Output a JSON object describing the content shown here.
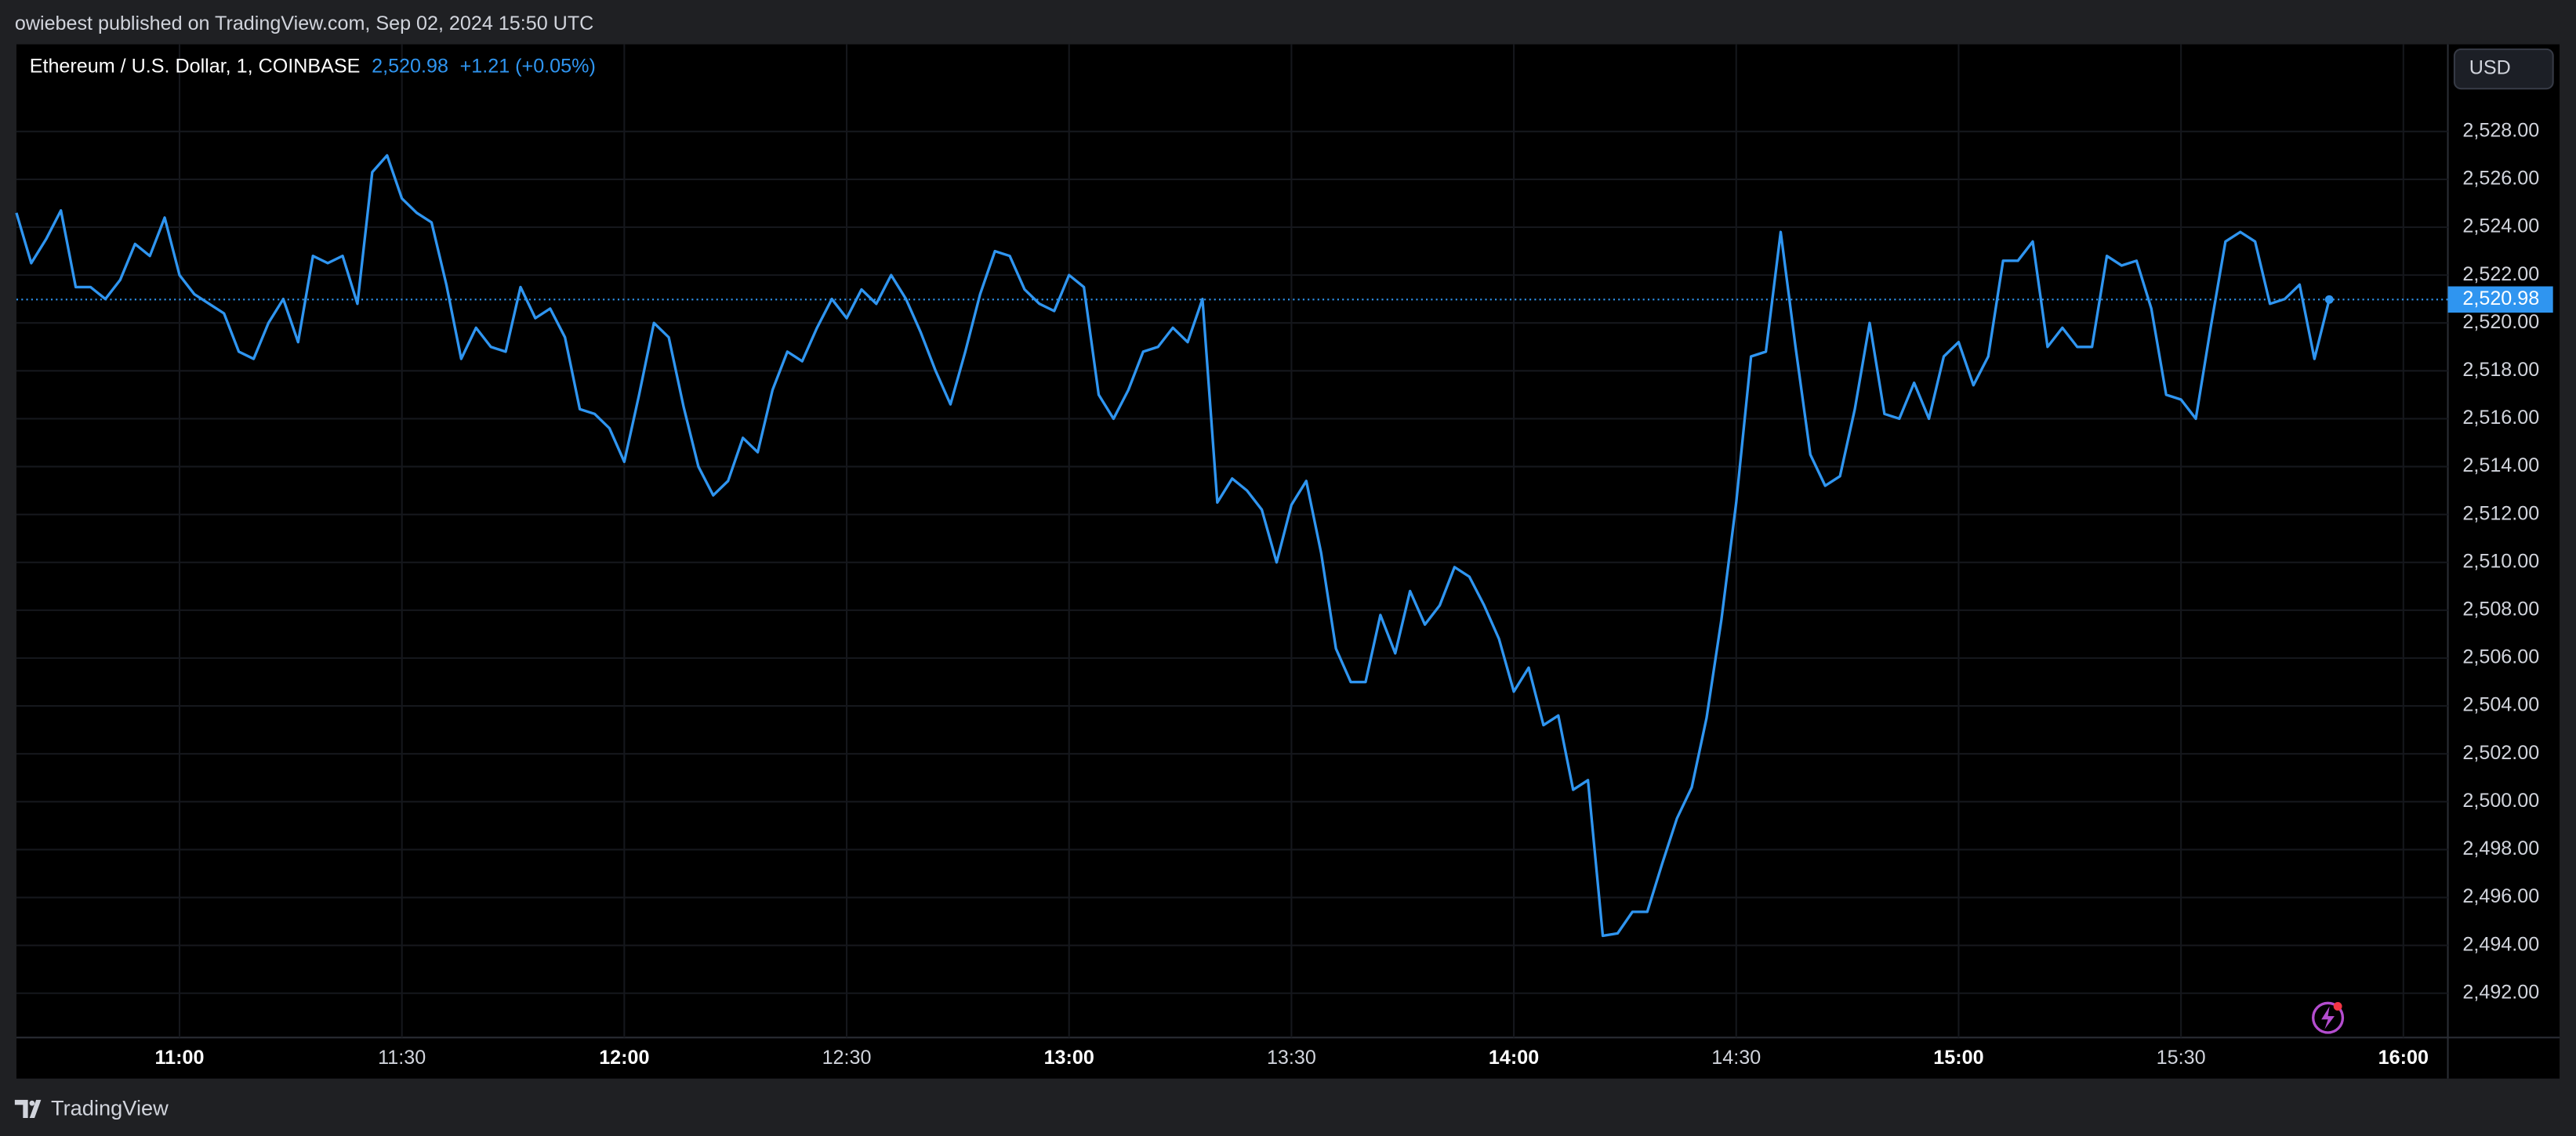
{
  "published": "owiebest published on TradingView.com, Sep 02, 2024 15:50 UTC",
  "brand": "TradingView",
  "currency": "USD",
  "chart_data": {
    "type": "line",
    "title": "Ethereum / U.S. Dollar, 1, COINBASE",
    "last_value": {
      "value": 2520.98,
      "label": "2,520.98"
    },
    "change_label": "+1.21 (+0.05%)",
    "x": [
      "10:38",
      "10:40",
      "10:42",
      "10:44",
      "10:46",
      "10:48",
      "10:50",
      "10:52",
      "10:54",
      "10:56",
      "10:58",
      "11:00",
      "11:02",
      "11:04",
      "11:06",
      "11:08",
      "11:10",
      "11:12",
      "11:14",
      "11:16",
      "11:18",
      "11:20",
      "11:22",
      "11:24",
      "11:26",
      "11:28",
      "11:30",
      "11:32",
      "11:34",
      "11:36",
      "11:38",
      "11:40",
      "11:42",
      "11:44",
      "11:46",
      "11:48",
      "11:50",
      "11:52",
      "11:54",
      "11:56",
      "11:58",
      "12:00",
      "12:02",
      "12:04",
      "12:06",
      "12:08",
      "12:10",
      "12:12",
      "12:14",
      "12:16",
      "12:18",
      "12:20",
      "12:22",
      "12:24",
      "12:26",
      "12:28",
      "12:30",
      "12:32",
      "12:34",
      "12:36",
      "12:38",
      "12:40",
      "12:42",
      "12:44",
      "12:46",
      "12:48",
      "12:50",
      "12:52",
      "12:54",
      "12:56",
      "12:58",
      "13:00",
      "13:02",
      "13:04",
      "13:06",
      "13:08",
      "13:10",
      "13:12",
      "13:14",
      "13:16",
      "13:18",
      "13:20",
      "13:22",
      "13:24",
      "13:26",
      "13:28",
      "13:30",
      "13:32",
      "13:34",
      "13:36",
      "13:38",
      "13:40",
      "13:42",
      "13:44",
      "13:46",
      "13:48",
      "13:50",
      "13:52",
      "13:54",
      "13:56",
      "13:58",
      "14:00",
      "14:02",
      "14:04",
      "14:06",
      "14:08",
      "14:10",
      "14:12",
      "14:14",
      "14:16",
      "14:18",
      "14:20",
      "14:22",
      "14:24",
      "14:26",
      "14:28",
      "14:30",
      "14:32",
      "14:34",
      "14:36",
      "14:38",
      "14:40",
      "14:42",
      "14:44",
      "14:46",
      "14:48",
      "14:50",
      "14:52",
      "14:54",
      "14:56",
      "14:58",
      "15:00",
      "15:02",
      "15:04",
      "15:06",
      "15:08",
      "15:10",
      "15:12",
      "15:14",
      "15:16",
      "15:18",
      "15:20",
      "15:22",
      "15:24",
      "15:26",
      "15:28",
      "15:30",
      "15:32",
      "15:34",
      "15:36",
      "15:38",
      "15:40",
      "15:42",
      "15:44",
      "15:46",
      "15:48",
      "15:50"
    ],
    "series": [
      {
        "name": "ETHUSD",
        "color": "#2f95f0",
        "values": [
          2524.6,
          2522.5,
          2523.5,
          2524.7,
          2521.5,
          2521.5,
          2521,
          2521.8,
          2523.3,
          2522.8,
          2524.4,
          2522,
          2521.2,
          2520.8,
          2520.4,
          2518.8,
          2518.5,
          2520,
          2521,
          2519.2,
          2522.8,
          2522.5,
          2522.8,
          2520.8,
          2526.3,
          2527,
          2525.2,
          2524.6,
          2524.2,
          2521.6,
          2518.5,
          2519.8,
          2519,
          2518.8,
          2521.5,
          2520.2,
          2520.6,
          2519.4,
          2516.4,
          2516.2,
          2515.6,
          2514.2,
          2517,
          2520,
          2519.4,
          2516.5,
          2514,
          2512.8,
          2513.4,
          2515.2,
          2514.6,
          2517.2,
          2518.8,
          2518.4,
          2519.8,
          2521,
          2520.2,
          2521.4,
          2520.8,
          2522,
          2521,
          2519.6,
          2518,
          2516.6,
          2518.8,
          2521.2,
          2523,
          2522.8,
          2521.4,
          2520.8,
          2520.5,
          2522,
          2521.5,
          2517,
          2516,
          2517.2,
          2518.8,
          2519,
          2519.8,
          2519.2,
          2521,
          2512.5,
          2513.5,
          2513,
          2512.2,
          2510,
          2512.4,
          2513.4,
          2510.4,
          2506.4,
          2505,
          2505,
          2507.8,
          2506.2,
          2508.8,
          2507.4,
          2508.2,
          2509.8,
          2509.4,
          2508.2,
          2506.8,
          2504.6,
          2505.6,
          2503.2,
          2503.6,
          2500.5,
          2500.9,
          2494.4,
          2494.5,
          2495.4,
          2495.4,
          2497.4,
          2499.3,
          2500.6,
          2503.5,
          2507.6,
          2512.5,
          2518.6,
          2518.8,
          2523.8,
          2519,
          2514.5,
          2513.2,
          2513.6,
          2516.4,
          2520,
          2516.2,
          2516,
          2517.5,
          2516,
          2518.6,
          2519.2,
          2517.4,
          2518.6,
          2522.6,
          2522.6,
          2523.4,
          2519,
          2519.8,
          2519,
          2519,
          2522.8,
          2522.4,
          2522.6,
          2520.6,
          2517,
          2516.8,
          2516,
          2519.8,
          2523.4,
          2523.8,
          2523.4,
          2520.8,
          2521,
          2521.6,
          2518.5,
          2520.98
        ]
      }
    ],
    "xlim": [
      "10:38",
      "16:06"
    ],
    "xticks": [
      "11:00",
      "11:30",
      "12:00",
      "12:30",
      "13:00",
      "13:30",
      "14:00",
      "14:30",
      "15:00",
      "15:30",
      "16:00"
    ],
    "ylim": [
      2490.15,
      2531.64
    ],
    "yticks": [
      {
        "value": 2492,
        "label": "2,492.00"
      },
      {
        "value": 2494,
        "label": "2,494.00"
      },
      {
        "value": 2496,
        "label": "2,496.00"
      },
      {
        "value": 2498,
        "label": "2,498.00"
      },
      {
        "value": 2500,
        "label": "2,500.00"
      },
      {
        "value": 2502,
        "label": "2,502.00"
      },
      {
        "value": 2504,
        "label": "2,504.00"
      },
      {
        "value": 2506,
        "label": "2,506.00"
      },
      {
        "value": 2508,
        "label": "2,508.00"
      },
      {
        "value": 2510,
        "label": "2,510.00"
      },
      {
        "value": 2512,
        "label": "2,512.00"
      },
      {
        "value": 2514,
        "label": "2,514.00"
      },
      {
        "value": 2516,
        "label": "2,516.00"
      },
      {
        "value": 2518,
        "label": "2,518.00"
      },
      {
        "value": 2520,
        "label": "2,520.00"
      },
      {
        "value": 2522,
        "label": "2,522.00"
      },
      {
        "value": 2524,
        "label": "2,524.00"
      },
      {
        "value": 2526,
        "label": "2,526.00"
      },
      {
        "value": 2528,
        "label": "2,528.00"
      }
    ],
    "grid": true
  }
}
